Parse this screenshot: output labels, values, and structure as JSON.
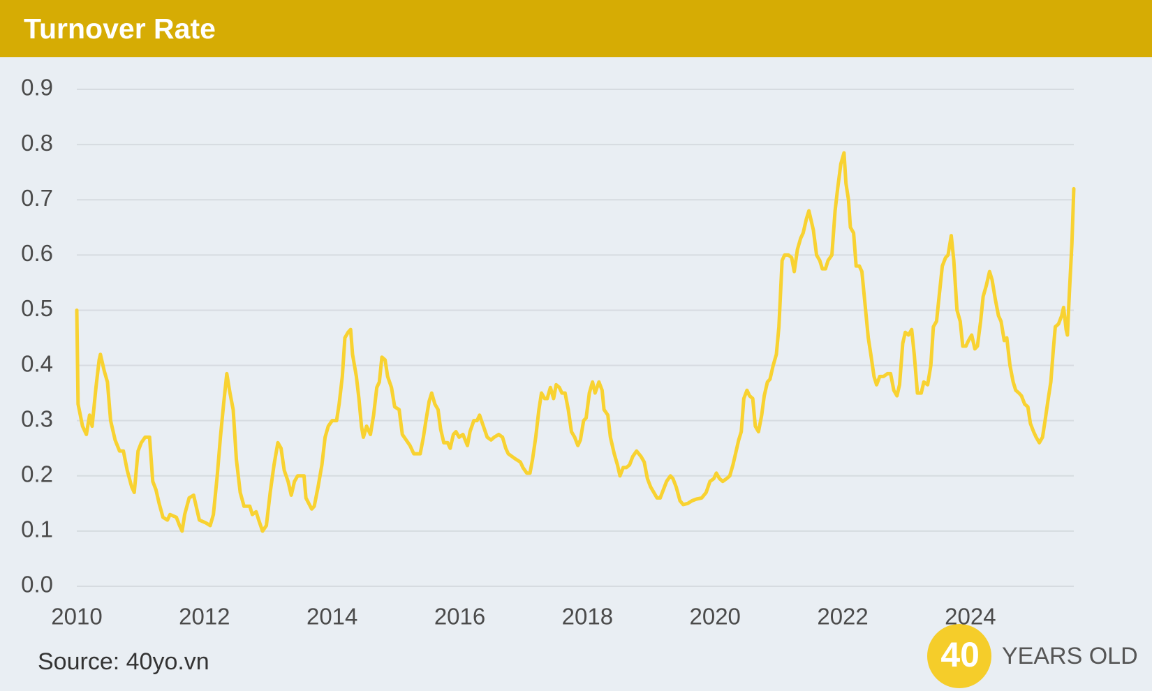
{
  "chart_data": {
    "type": "line",
    "title": "Turnover Rate",
    "source": "Source: 40yo.vn",
    "logo": {
      "number": "40",
      "text": "YEARS OLD"
    },
    "xlim": [
      2010,
      2025.62
    ],
    "xticks": [
      2010,
      2012,
      2014,
      2016,
      2018,
      2020,
      2022,
      2024
    ],
    "ylim": [
      0,
      0.9
    ],
    "yticks": [
      {
        "value": 0,
        "label": "0.0"
      },
      0.1,
      0.2,
      0.3,
      0.4,
      0.5,
      0.6,
      0.7,
      0.8,
      0.9
    ],
    "grid": true,
    "x": [
      2010.0,
      2010.02,
      2010.09,
      2010.15,
      2010.2,
      2010.24,
      2010.3,
      2010.35,
      2010.37,
      2010.43,
      2010.48,
      2010.53,
      2010.6,
      2010.67,
      2010.73,
      2010.79,
      2010.86,
      2010.9,
      2010.96,
      2011.01,
      2011.07,
      2011.14,
      2011.19,
      2011.24,
      2011.29,
      2011.35,
      2011.42,
      2011.46,
      2011.56,
      2011.61,
      2011.65,
      2011.69,
      2011.76,
      2011.83,
      2011.88,
      2011.92,
      2012.02,
      2012.09,
      2012.14,
      2012.2,
      2012.25,
      2012.3,
      2012.35,
      2012.4,
      2012.45,
      2012.5,
      2012.56,
      2012.62,
      2012.71,
      2012.75,
      2012.81,
      2012.85,
      2012.91,
      2012.97,
      2013.03,
      2013.09,
      2013.15,
      2013.2,
      2013.25,
      2013.31,
      2013.36,
      2013.41,
      2013.46,
      2013.56,
      2013.59,
      2013.68,
      2013.72,
      2013.78,
      2013.84,
      2013.89,
      2013.94,
      2014.0,
      2014.07,
      2014.11,
      2014.16,
      2014.2,
      2014.25,
      2014.29,
      2014.32,
      2014.38,
      2014.42,
      2014.46,
      2014.49,
      2014.54,
      2014.6,
      2014.65,
      2014.7,
      2014.74,
      2014.78,
      2014.83,
      2014.87,
      2014.93,
      2014.98,
      2015.05,
      2015.1,
      2015.16,
      2015.22,
      2015.28,
      2015.33,
      2015.38,
      2015.43,
      2015.47,
      2015.52,
      2015.56,
      2015.61,
      2015.66,
      2015.7,
      2015.75,
      2015.81,
      2015.85,
      2015.9,
      2015.94,
      2015.99,
      2016.05,
      2016.12,
      2016.16,
      2016.22,
      2016.27,
      2016.31,
      2016.37,
      2016.43,
      2016.49,
      2016.54,
      2016.61,
      2016.67,
      2016.72,
      2016.76,
      2016.82,
      2016.88,
      2016.95,
      2016.99,
      2017.05,
      2017.1,
      2017.14,
      2017.19,
      2017.24,
      2017.28,
      2017.33,
      2017.37,
      2017.42,
      2017.47,
      2017.51,
      2017.56,
      2017.6,
      2017.65,
      2017.7,
      2017.75,
      2017.8,
      2017.85,
      2017.89,
      2017.94,
      2017.98,
      2018.03,
      2018.08,
      2018.12,
      2018.18,
      2018.23,
      2018.26,
      2018.32,
      2018.36,
      2018.42,
      2018.47,
      2018.51,
      2018.56,
      2018.61,
      2018.66,
      2018.71,
      2018.77,
      2018.84,
      2018.89,
      2018.94,
      2018.99,
      2019.04,
      2019.09,
      2019.14,
      2019.19,
      2019.24,
      2019.3,
      2019.34,
      2019.39,
      2019.45,
      2019.5,
      2019.57,
      2019.64,
      2019.71,
      2019.79,
      2019.86,
      2019.92,
      2019.98,
      2020.02,
      2020.07,
      2020.12,
      2020.18,
      2020.23,
      2020.28,
      2020.32,
      2020.37,
      2020.41,
      2020.45,
      2020.5,
      2020.54,
      2020.59,
      2020.63,
      2020.68,
      2020.73,
      2020.77,
      2020.82,
      2020.86,
      2020.91,
      2020.96,
      2021.0,
      2021.05,
      2021.09,
      2021.15,
      2021.2,
      2021.24,
      2021.29,
      2021.34,
      2021.38,
      2021.43,
      2021.47,
      2021.51,
      2021.54,
      2021.59,
      2021.64,
      2021.68,
      2021.73,
      2021.77,
      2021.83,
      2021.88,
      2021.92,
      2021.97,
      2022.02,
      2022.05,
      2022.09,
      2022.12,
      2022.17,
      2022.21,
      2022.26,
      2022.3,
      2022.35,
      2022.4,
      2022.44,
      2022.49,
      2022.53,
      2022.58,
      2022.64,
      2022.7,
      2022.75,
      2022.8,
      2022.85,
      2022.89,
      2022.94,
      2022.98,
      2023.03,
      2023.08,
      2023.12,
      2023.17,
      2023.23,
      2023.27,
      2023.33,
      2023.38,
      2023.42,
      2023.47,
      2023.51,
      2023.56,
      2023.61,
      2023.65,
      2023.7,
      2023.74,
      2023.79,
      2023.84,
      2023.88,
      2023.93,
      2023.97,
      2024.02,
      2024.07,
      2024.11,
      2024.16,
      2024.2,
      2024.25,
      2024.3,
      2024.34,
      2024.39,
      2024.44,
      2024.48,
      2024.53,
      2024.57,
      2024.62,
      2024.67,
      2024.71,
      2024.76,
      2024.8,
      2024.85,
      2024.9,
      2024.94,
      2024.99,
      2025.03,
      2025.08,
      2025.13,
      2025.17,
      2025.22,
      2025.26,
      2025.3,
      2025.33,
      2025.38,
      2025.43,
      2025.46,
      2025.5,
      2025.52,
      2025.55,
      2025.59,
      2025.62
    ],
    "series": [
      {
        "color": "#f8d231",
        "values": [
          0.5,
          0.33,
          0.29,
          0.275,
          0.31,
          0.29,
          0.36,
          0.41,
          0.42,
          0.39,
          0.37,
          0.3,
          0.265,
          0.245,
          0.245,
          0.21,
          0.18,
          0.17,
          0.245,
          0.26,
          0.27,
          0.27,
          0.19,
          0.175,
          0.15,
          0.125,
          0.12,
          0.13,
          0.125,
          0.11,
          0.1,
          0.13,
          0.16,
          0.165,
          0.14,
          0.12,
          0.115,
          0.11,
          0.13,
          0.2,
          0.27,
          0.33,
          0.385,
          0.35,
          0.32,
          0.23,
          0.17,
          0.145,
          0.145,
          0.13,
          0.135,
          0.12,
          0.1,
          0.11,
          0.17,
          0.22,
          0.26,
          0.25,
          0.21,
          0.19,
          0.165,
          0.19,
          0.2,
          0.2,
          0.16,
          0.14,
          0.145,
          0.18,
          0.22,
          0.27,
          0.29,
          0.3,
          0.3,
          0.33,
          0.38,
          0.45,
          0.46,
          0.465,
          0.42,
          0.38,
          0.34,
          0.29,
          0.27,
          0.29,
          0.275,
          0.31,
          0.36,
          0.37,
          0.415,
          0.41,
          0.38,
          0.36,
          0.325,
          0.32,
          0.275,
          0.265,
          0.255,
          0.24,
          0.24,
          0.24,
          0.27,
          0.3,
          0.335,
          0.35,
          0.33,
          0.32,
          0.285,
          0.26,
          0.26,
          0.25,
          0.275,
          0.28,
          0.27,
          0.275,
          0.255,
          0.28,
          0.3,
          0.3,
          0.31,
          0.29,
          0.27,
          0.265,
          0.27,
          0.275,
          0.27,
          0.25,
          0.24,
          0.235,
          0.23,
          0.225,
          0.215,
          0.205,
          0.205,
          0.23,
          0.27,
          0.32,
          0.35,
          0.34,
          0.34,
          0.36,
          0.34,
          0.365,
          0.36,
          0.35,
          0.35,
          0.32,
          0.28,
          0.27,
          0.255,
          0.265,
          0.3,
          0.305,
          0.35,
          0.37,
          0.35,
          0.37,
          0.355,
          0.32,
          0.31,
          0.27,
          0.24,
          0.22,
          0.2,
          0.215,
          0.215,
          0.22,
          0.235,
          0.245,
          0.235,
          0.225,
          0.195,
          0.18,
          0.17,
          0.16,
          0.16,
          0.175,
          0.19,
          0.2,
          0.195,
          0.18,
          0.155,
          0.148,
          0.15,
          0.155,
          0.158,
          0.16,
          0.17,
          0.19,
          0.195,
          0.205,
          0.195,
          0.19,
          0.195,
          0.2,
          0.22,
          0.24,
          0.265,
          0.28,
          0.34,
          0.355,
          0.345,
          0.34,
          0.29,
          0.28,
          0.31,
          0.345,
          0.37,
          0.375,
          0.4,
          0.42,
          0.47,
          0.59,
          0.6,
          0.6,
          0.595,
          0.57,
          0.61,
          0.63,
          0.64,
          0.665,
          0.68,
          0.66,
          0.645,
          0.6,
          0.59,
          0.575,
          0.575,
          0.59,
          0.6,
          0.68,
          0.72,
          0.765,
          0.785,
          0.73,
          0.7,
          0.65,
          0.64,
          0.58,
          0.58,
          0.57,
          0.51,
          0.45,
          0.42,
          0.38,
          0.365,
          0.38,
          0.38,
          0.385,
          0.385,
          0.355,
          0.345,
          0.365,
          0.44,
          0.46,
          0.455,
          0.465,
          0.42,
          0.35,
          0.35,
          0.37,
          0.365,
          0.4,
          0.47,
          0.48,
          0.525,
          0.58,
          0.595,
          0.6,
          0.635,
          0.59,
          0.5,
          0.48,
          0.435,
          0.435,
          0.445,
          0.455,
          0.43,
          0.435,
          0.48,
          0.525,
          0.545,
          0.57,
          0.555,
          0.52,
          0.49,
          0.48,
          0.445,
          0.45,
          0.4,
          0.37,
          0.355,
          0.35,
          0.345,
          0.33,
          0.325,
          0.295,
          0.28,
          0.27,
          0.26,
          0.27,
          0.3,
          0.34,
          0.37,
          0.43,
          0.47,
          0.475,
          0.49,
          0.505,
          0.465,
          0.455,
          0.53,
          0.62,
          0.72
        ]
      }
    ]
  }
}
